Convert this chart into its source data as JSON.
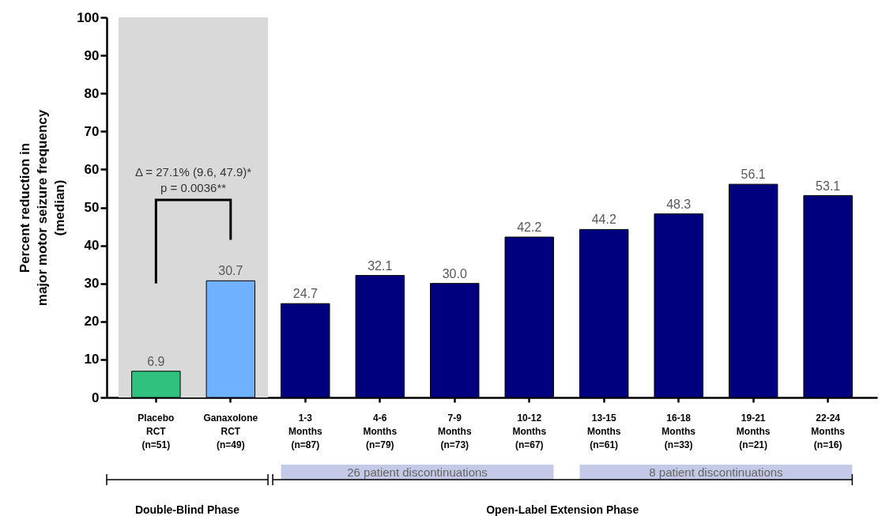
{
  "chart_data": {
    "type": "bar",
    "ylabel": "Percent reduction in\nmajor motor seizure frequency\n(median)",
    "categories": [
      "Placebo\nRCT\n(n=51)",
      "Ganaxolone\nRCT\n(n=49)",
      "1-3\nMonths\n(n=87)",
      "4-6\nMonths\n(n=79)",
      "7-9\nMonths\n(n=73)",
      "10-12\nMonths\n(n=67)",
      "13-15\nMonths\n(n=61)",
      "16-18\nMonths\n(n=33)",
      "19-21\nMonths\n(n=21)",
      "22-24\nMonths\n(n=16)"
    ],
    "values": [
      6.9,
      30.7,
      24.7,
      32.1,
      30.0,
      42.2,
      44.2,
      48.3,
      56.1,
      53.1
    ],
    "value_labels": [
      "6.9",
      "30.7",
      "24.7",
      "32.1",
      "30.0",
      "42.2",
      "44.2",
      "48.3",
      "56.1",
      "53.1"
    ],
    "colors": [
      "#2ec27e",
      "#6fb1ff",
      "#00007f",
      "#00007f",
      "#00007f",
      "#00007f",
      "#00007f",
      "#00007f",
      "#00007f",
      "#00007f"
    ],
    "ylim": [
      0,
      100
    ],
    "yticks": [
      0,
      10,
      20,
      30,
      40,
      50,
      60,
      70,
      80,
      90,
      100
    ],
    "grid": false,
    "legend": false,
    "bands": [
      {
        "axis": "x",
        "from": "Placebo\nRCT\n(n=51)",
        "to": "Ganaxolone\nRCT\n(n=49)",
        "color": "#d9d9d9"
      }
    ],
    "annotations": [
      "Δ = 27.1% (9.6, 47.9)*",
      "p = 0.0036**",
      "26 patient discontinuations",
      "8 patient discontinuations",
      "Double-Blind Phase",
      "Open-Label Extension Phase"
    ]
  }
}
